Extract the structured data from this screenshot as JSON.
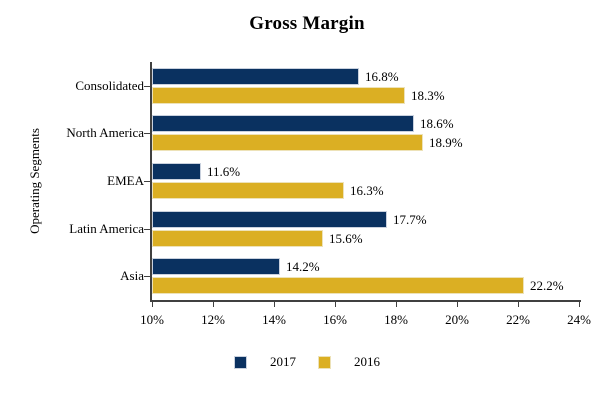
{
  "chart_data": {
    "type": "bar",
    "orientation": "horizontal",
    "title": "Gross Margin",
    "xlabel": "",
    "ylabel": "Operating Segments",
    "categories": [
      "Consolidated",
      "North America",
      "EMEA",
      "Latin America",
      "Asia"
    ],
    "series": [
      {
        "name": "2017",
        "color": "#0a3160",
        "border_color": "#c9d1de",
        "values": [
          16.8,
          18.6,
          11.6,
          17.7,
          14.2
        ],
        "labels": [
          "16.8%",
          "18.6%",
          "11.6%",
          "17.7%",
          "14.2%"
        ]
      },
      {
        "name": "2016",
        "color": "#dbaf23",
        "border_color": "#ede2b8",
        "values": [
          18.3,
          18.9,
          16.3,
          15.6,
          22.2
        ],
        "labels": [
          "18.3%",
          "18.9%",
          "16.3%",
          "15.6%",
          "22.2%"
        ]
      }
    ],
    "x_axis": {
      "min": 10,
      "max": 24,
      "tick_step": 2,
      "tick_labels": [
        "10%",
        "12%",
        "14%",
        "16%",
        "18%",
        "20%",
        "22%",
        "24%"
      ]
    },
    "legend_position": "bottom-center",
    "grid": false,
    "axis_color": "#404040",
    "text_color": "#000000",
    "background_color": "#ffffff"
  }
}
